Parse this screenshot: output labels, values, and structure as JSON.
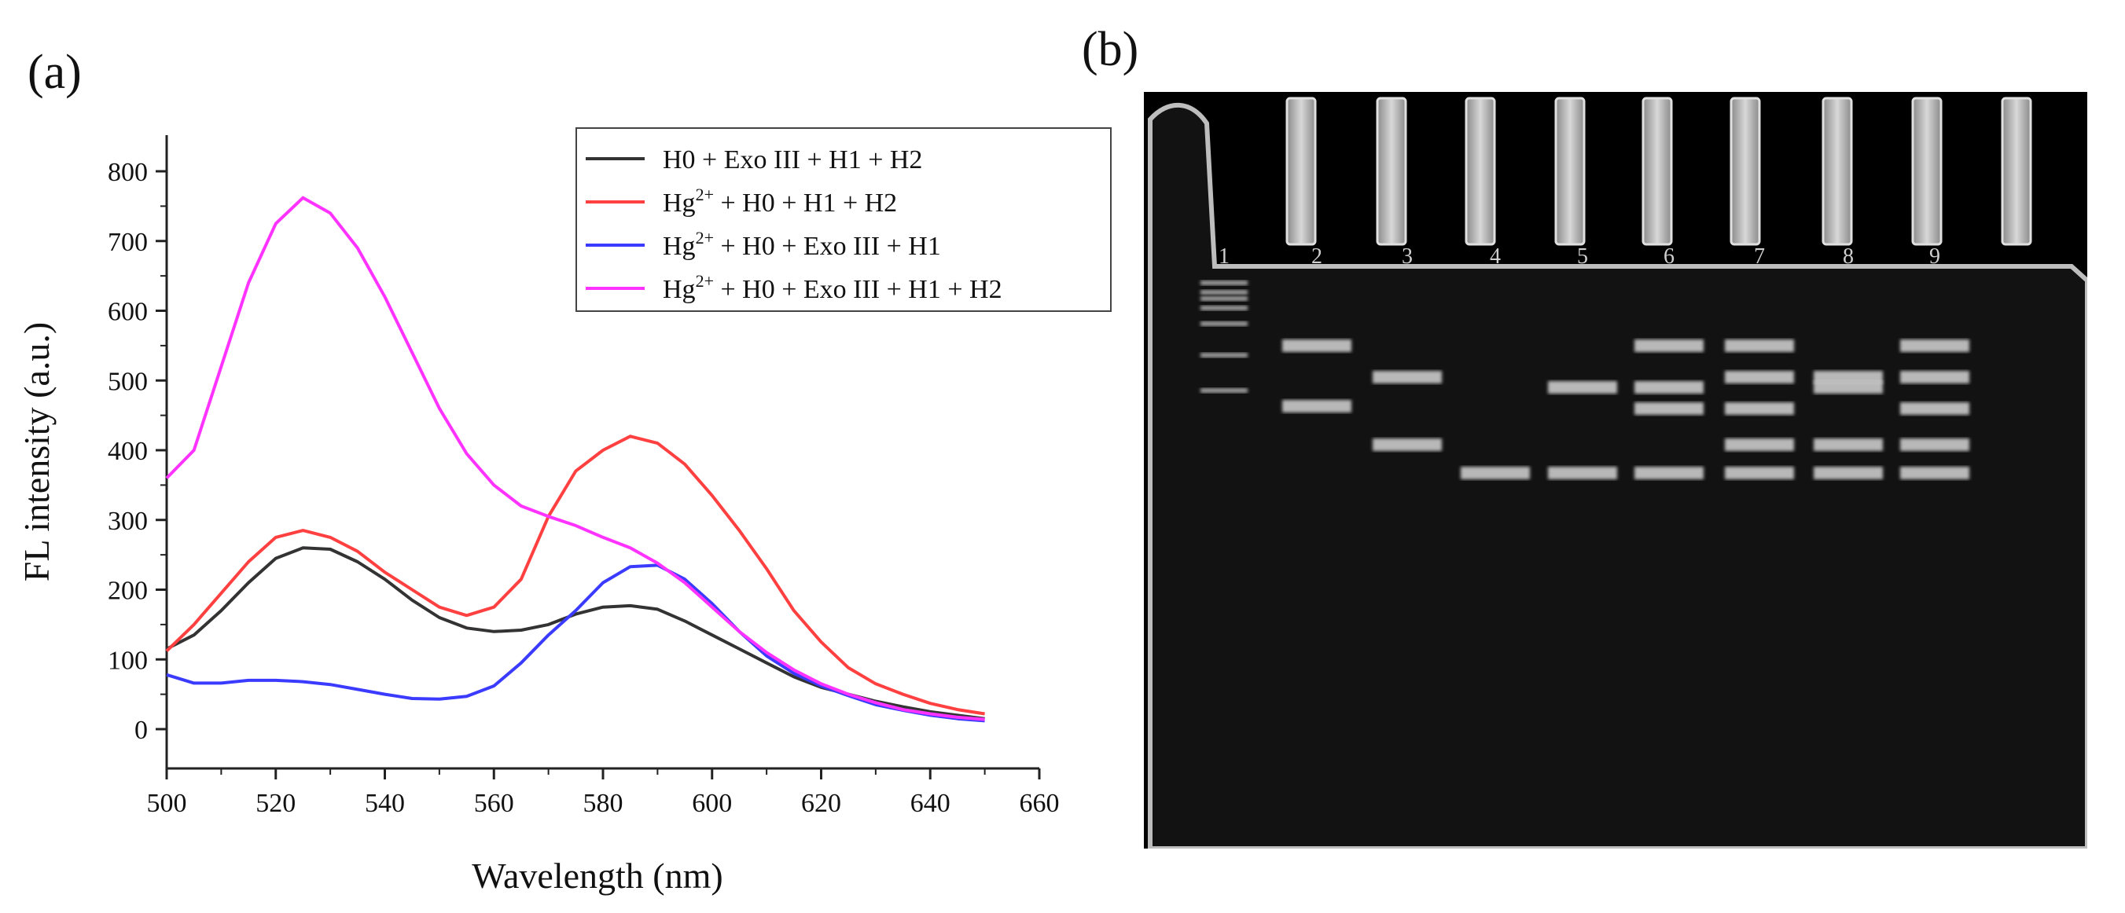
{
  "panel_a_label": "(a)",
  "panel_b_label": "(b)",
  "chart_data": {
    "type": "line",
    "xlabel": "Wavelength (nm)",
    "ylabel": "FL intensity (a.u.)",
    "xlim": [
      500,
      660
    ],
    "ylim": [
      0,
      800
    ],
    "xticks": [
      500,
      520,
      540,
      560,
      580,
      600,
      620,
      640,
      660
    ],
    "yticks": [
      0,
      100,
      200,
      300,
      400,
      500,
      600,
      700,
      800
    ],
    "legend_position": "top-right",
    "x": [
      500,
      505,
      510,
      515,
      520,
      525,
      530,
      535,
      540,
      545,
      550,
      555,
      560,
      565,
      570,
      575,
      580,
      585,
      590,
      595,
      600,
      605,
      610,
      615,
      620,
      625,
      630,
      635,
      640,
      645,
      650
    ],
    "series": [
      {
        "name_parts": {
          "base": "H0 + Exo III + H1 + H2",
          "sup": "",
          "rest": ""
        },
        "color": "#333333",
        "values": [
          115,
          135,
          170,
          210,
          245,
          260,
          258,
          240,
          215,
          185,
          160,
          145,
          140,
          142,
          150,
          165,
          175,
          177,
          172,
          155,
          135,
          115,
          95,
          75,
          60,
          50,
          40,
          32,
          25,
          20,
          15
        ]
      },
      {
        "name_parts": {
          "base": "Hg",
          "sup": "2+",
          "rest": " + H0 + H1 + H2"
        },
        "color": "#ff4040",
        "values": [
          112,
          150,
          195,
          240,
          275,
          285,
          275,
          255,
          225,
          200,
          175,
          163,
          175,
          215,
          305,
          370,
          400,
          420,
          410,
          380,
          335,
          285,
          230,
          170,
          125,
          88,
          65,
          50,
          37,
          28,
          22
        ]
      },
      {
        "name_parts": {
          "base": "Hg",
          "sup": "2+",
          "rest": " + H0 + Exo III + H1"
        },
        "color": "#3b3bff",
        "values": [
          78,
          66,
          66,
          70,
          70,
          68,
          64,
          57,
          50,
          44,
          43,
          47,
          62,
          95,
          135,
          170,
          210,
          233,
          235,
          215,
          180,
          140,
          105,
          80,
          62,
          48,
          35,
          27,
          20,
          15,
          12
        ]
      },
      {
        "name_parts": {
          "base": "Hg",
          "sup": "2+",
          "rest": " + H0 + Exo III + H1 + H2"
        },
        "color": "#ff33ff",
        "values": [
          360,
          400,
          520,
          640,
          725,
          762,
          740,
          690,
          620,
          540,
          460,
          395,
          350,
          320,
          305,
          292,
          275,
          260,
          238,
          210,
          175,
          140,
          110,
          85,
          65,
          50,
          38,
          28,
          22,
          17,
          14
        ]
      }
    ]
  },
  "gel": {
    "lane_labels": [
      "1",
      "2",
      "3",
      "4",
      "5",
      "6",
      "7",
      "8",
      "9"
    ],
    "ladder_bands": [
      243,
      255,
      263,
      275,
      295,
      335,
      380
    ],
    "lane_bands": [
      [],
      [
        323,
        400
      ],
      [
        363,
        449
      ],
      [
        485
      ],
      [
        376,
        485
      ],
      [
        323,
        376,
        403,
        485
      ],
      [
        323,
        363,
        403,
        449,
        485
      ],
      [
        363,
        376,
        449,
        485
      ],
      [
        323,
        363,
        403,
        449,
        485
      ]
    ]
  }
}
